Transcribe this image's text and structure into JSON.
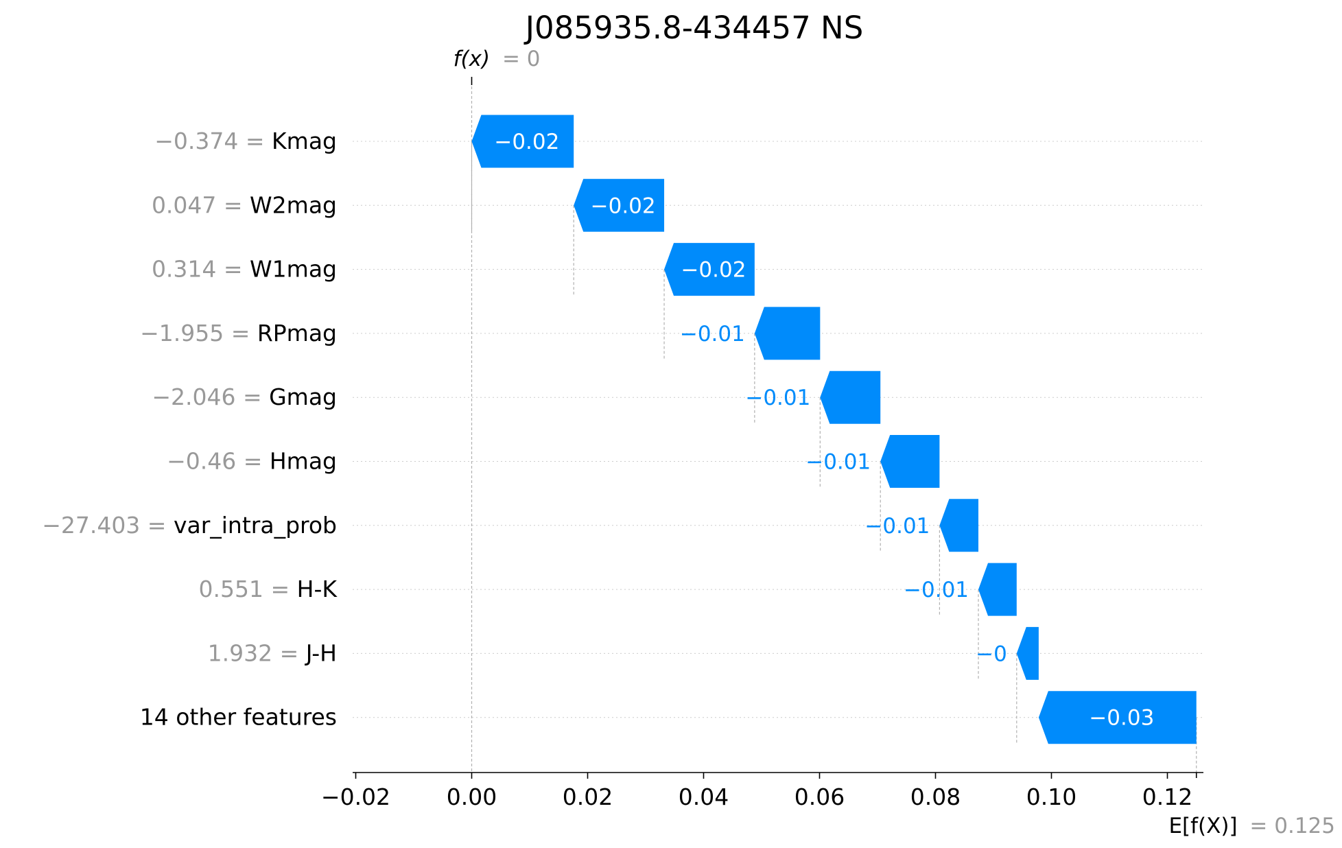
{
  "chart_data": {
    "type": "bar",
    "subtype": "waterfall",
    "title": "J085935.8-434457 NS",
    "fx_label": "f(x)",
    "fx_value_text": "= 0",
    "fx_value": 0,
    "expected_label": "E[f(X)]",
    "expected_value_text": "= 0.125",
    "expected_value": 0.125,
    "xlim": [
      -0.02,
      0.123
    ],
    "xticks": [
      -0.02,
      0.0,
      0.02,
      0.04,
      0.06,
      0.08,
      0.1,
      0.12
    ],
    "xtick_labels": [
      "−0.02",
      "0.00",
      "0.02",
      "0.04",
      "0.06",
      "0.08",
      "0.10",
      "0.12"
    ],
    "grid": "horizontal dotted",
    "colors": {
      "negative": "#008bfb",
      "muted_text": "#999999",
      "text": "#000000"
    },
    "features": [
      {
        "value_text": "−0.374",
        "name": "Kmag",
        "start": 0.0176,
        "end": 0.0,
        "label": "−0.02",
        "label_inside": true
      },
      {
        "value_text": "0.047",
        "name": "W2mag",
        "start": 0.0332,
        "end": 0.0176,
        "label": "−0.02",
        "label_inside": true
      },
      {
        "value_text": "0.314",
        "name": "W1mag",
        "start": 0.0488,
        "end": 0.0332,
        "label": "−0.02",
        "label_inside": true
      },
      {
        "value_text": "−1.955",
        "name": "RPmag",
        "start": 0.0601,
        "end": 0.0488,
        "label": "−0.01",
        "label_inside": false
      },
      {
        "value_text": "−2.046",
        "name": "Gmag",
        "start": 0.0705,
        "end": 0.0601,
        "label": "−0.01",
        "label_inside": false
      },
      {
        "value_text": "−0.46",
        "name": "Hmag",
        "start": 0.0807,
        "end": 0.0705,
        "label": "−0.01",
        "label_inside": false
      },
      {
        "value_text": "−27.403",
        "name": "var_intra_prob",
        "start": 0.0874,
        "end": 0.0807,
        "label": "−0.01",
        "label_inside": false
      },
      {
        "value_text": "0.551",
        "name": "H-K",
        "start": 0.094,
        "end": 0.0874,
        "label": "−0.01",
        "label_inside": false
      },
      {
        "value_text": "1.932",
        "name": "J-H",
        "start": 0.0978,
        "end": 0.094,
        "label": "−0",
        "label_inside": false
      },
      {
        "value_text": "",
        "name": "14 other features",
        "start": 0.125,
        "end": 0.0978,
        "label": "−0.03",
        "label_inside": true
      }
    ]
  }
}
